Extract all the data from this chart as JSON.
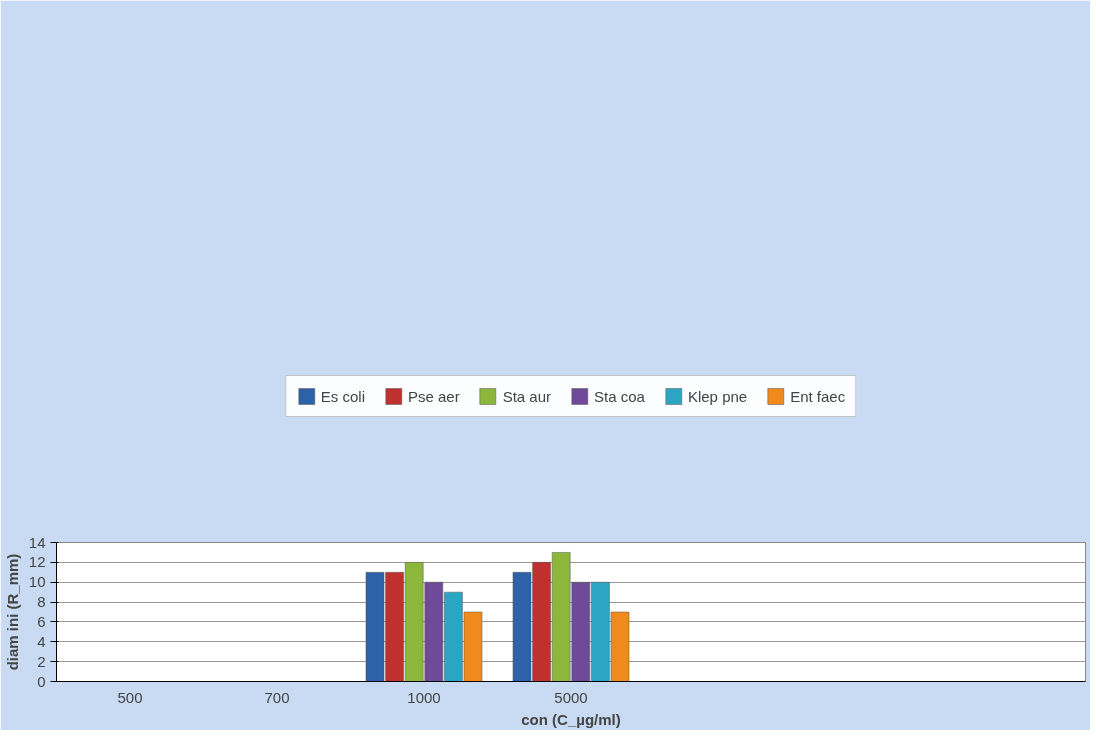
{
  "chart_data": {
    "type": "bar",
    "xlabel": "con (C_µg/ml)",
    "ylabel": "diam ini (R_mm)",
    "categories": [
      "500",
      "700",
      "1000",
      "5000",
      null,
      null,
      null
    ],
    "series": [
      {
        "name": "Es coli",
        "color": "#2e62a8",
        "values": [
          null,
          null,
          11,
          11,
          null,
          null,
          null
        ]
      },
      {
        "name": "Pse aer",
        "color": "#c0302e",
        "values": [
          null,
          null,
          11,
          12,
          null,
          null,
          null
        ]
      },
      {
        "name": "Sta aur",
        "color": "#8db63c",
        "values": [
          null,
          null,
          12,
          13,
          null,
          null,
          null
        ]
      },
      {
        "name": "Sta coa",
        "color": "#6f4a9a",
        "values": [
          null,
          null,
          10,
          10,
          null,
          null,
          null
        ]
      },
      {
        "name": "Klep pne",
        "color": "#2ba5c2",
        "values": [
          null,
          null,
          9,
          10,
          null,
          null,
          null
        ]
      },
      {
        "name": "Ent faec",
        "color": "#f08a1c",
        "values": [
          null,
          null,
          7,
          7,
          null,
          null,
          null
        ]
      }
    ],
    "ylim": [
      0,
      14
    ],
    "yticks": [
      0,
      2,
      4,
      6,
      8,
      10,
      12,
      14
    ],
    "grid": "y",
    "legend": "top"
  }
}
